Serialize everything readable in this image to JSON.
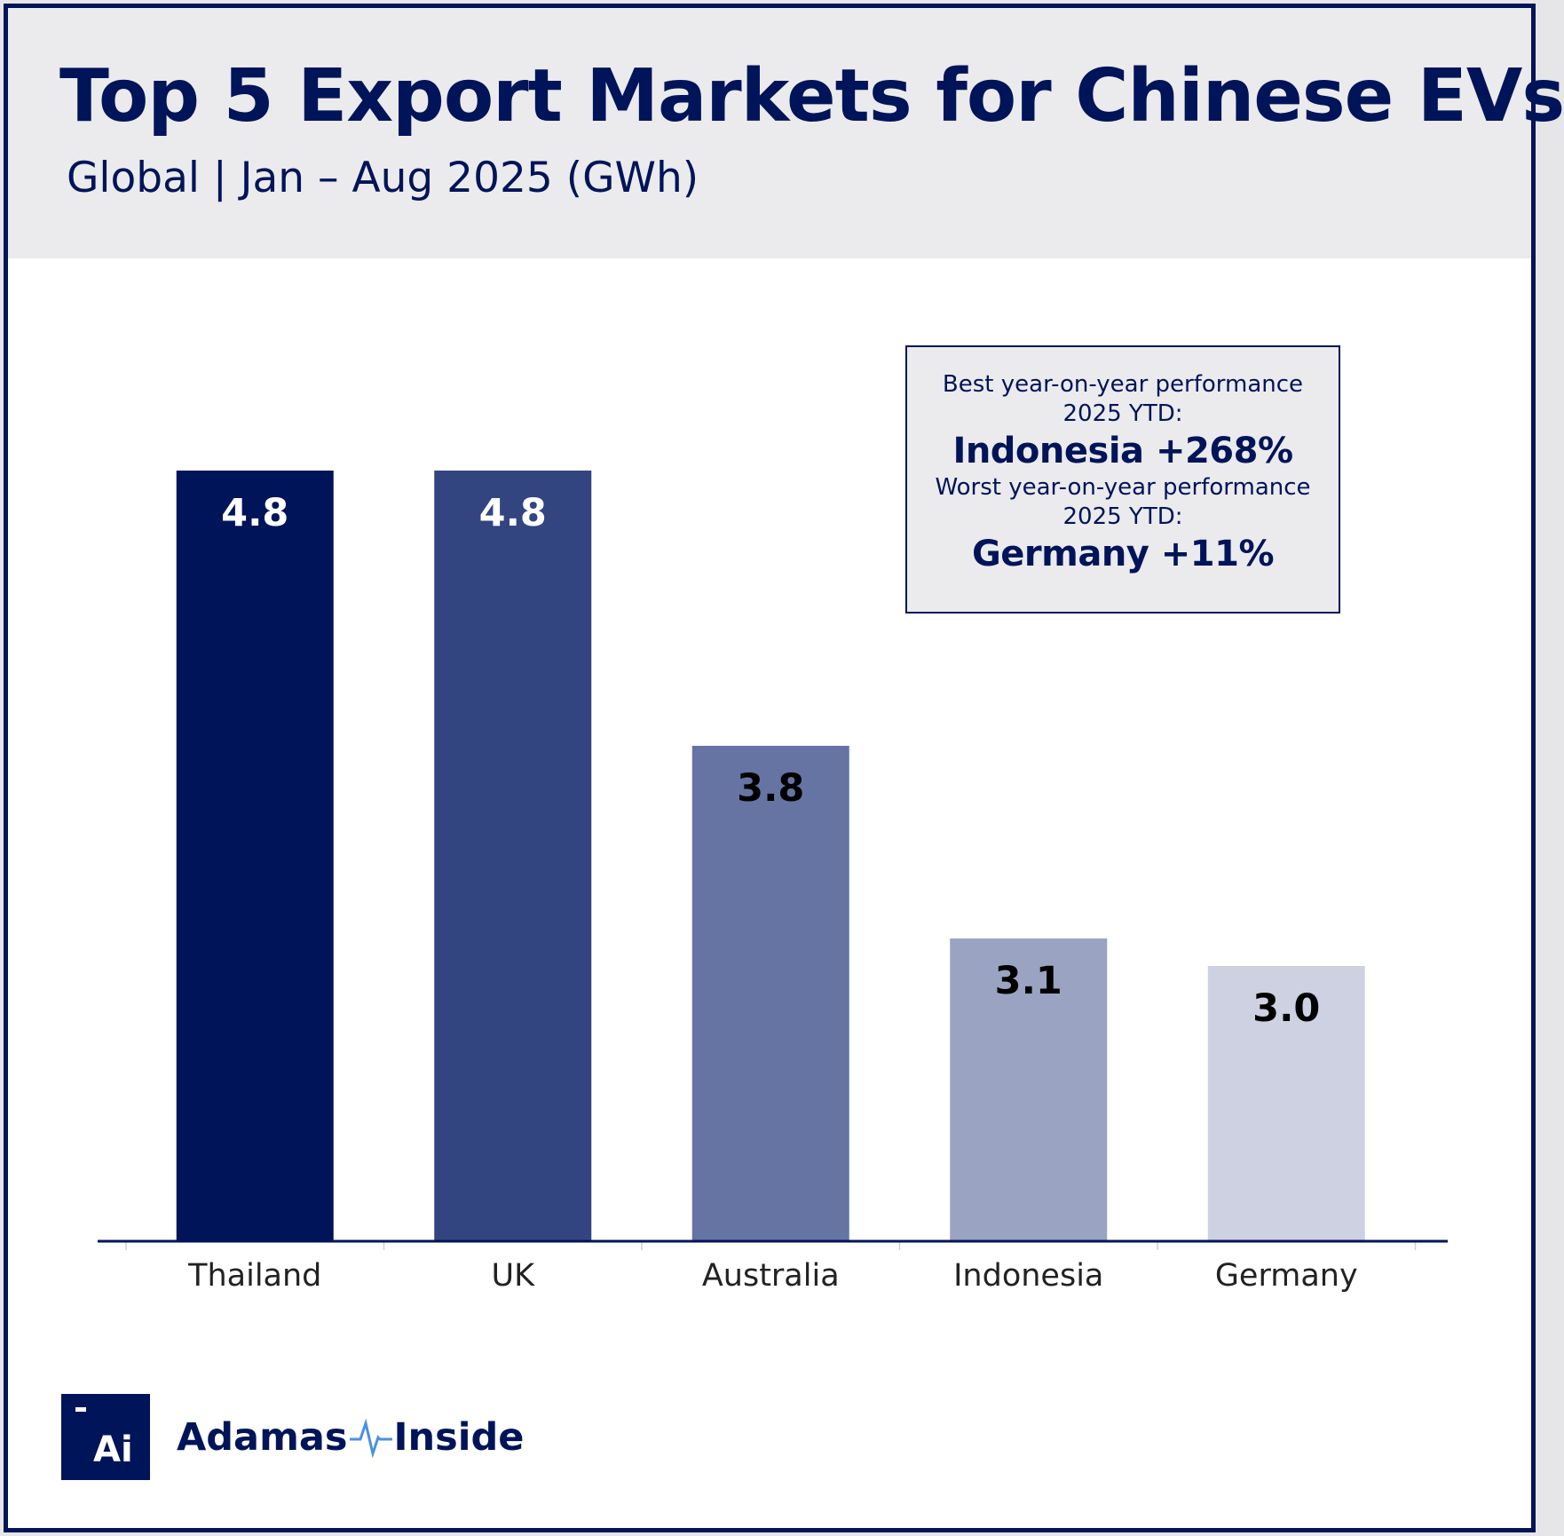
{
  "header": {
    "title": "Top 5 Export Markets for Chinese EVs",
    "subtitle": "Global | Jan – Aug 2025 (GWh)"
  },
  "callout": {
    "best_label_1": "Best year-on-year performance",
    "best_label_2": "2025 YTD:",
    "best_value": "Indonesia +268%",
    "worst_label_1": "Worst year-on-year performance",
    "worst_label_2": "2025 YTD:",
    "worst_value": "Germany +11%"
  },
  "logo": {
    "mark": "Ai",
    "name_left": "Adamas",
    "name_right": "Inside",
    "icon": "pulse-icon",
    "pulse_color": "#4a90e2"
  },
  "chart_data": {
    "type": "bar",
    "title": "Top 5 Export Markets for Chinese EVs",
    "subtitle": "Global | Jan – Aug 2025 (GWh)",
    "categories": [
      "Thailand",
      "UK",
      "Australia",
      "Indonesia",
      "Germany"
    ],
    "values": [
      4.8,
      4.8,
      3.8,
      3.1,
      3.0
    ],
    "value_labels": [
      "4.8",
      "4.8",
      "3.8",
      "3.1",
      "3.0"
    ],
    "colors": [
      "#001459",
      "#334580",
      "#6574a3",
      "#9aa3c1",
      "#cdd1e2"
    ],
    "label_colors": [
      "#ffffff",
      "#ffffff",
      "#000000",
      "#000000",
      "#000000"
    ],
    "ylim": [
      2,
      5
    ],
    "grid": false,
    "y_axis_visible": false,
    "xlabel": "",
    "ylabel": ""
  }
}
